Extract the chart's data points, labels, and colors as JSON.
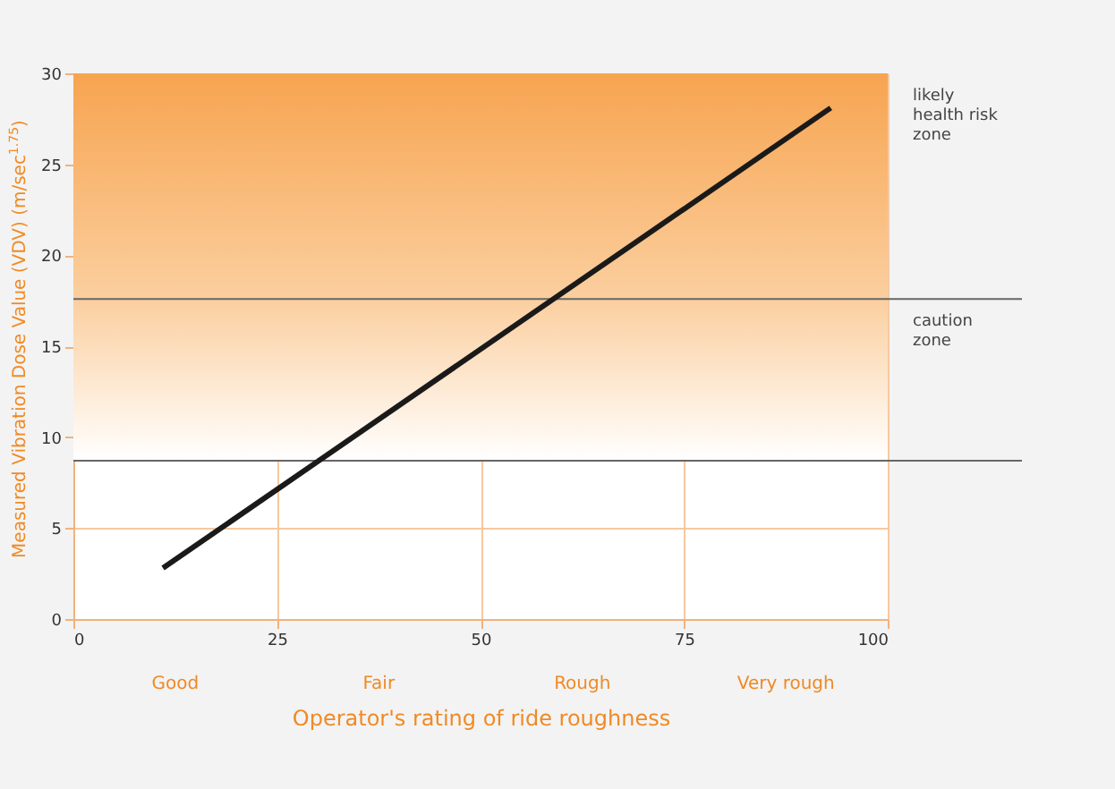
{
  "chart_data": {
    "type": "line",
    "xlabel": "Operator's rating of ride roughness",
    "ylabel": "Measured Vibration Dose Value (VDV) (m/sec$^{1.75}$)",
    "x": [
      11,
      93
    ],
    "series": [
      {
        "color": "#1a1a1a",
        "values": [
          2.8,
          28.1
        ]
      }
    ],
    "xlim": [
      0,
      100
    ],
    "xticks": [
      0,
      25,
      50,
      75,
      100
    ],
    "ylim": [
      0,
      30
    ],
    "yticks": [
      0,
      5,
      10,
      15,
      20,
      25,
      30
    ],
    "grid": true,
    "marker": "none",
    "line_style": "solid",
    "bands": [
      {
        "axis": "y",
        "from": 8.7,
        "to": 17.6,
        "label": "caution zone",
        "color": "#fbcf9f"
      },
      {
        "axis": "y",
        "from": 17.6,
        "to": 30,
        "label": "likely health risk zone",
        "color": "#f7a450"
      }
    ],
    "ref_lines": [
      {
        "axis": "y",
        "value": 8.7,
        "color": "#666666"
      },
      {
        "axis": "y",
        "value": 17.6,
        "color": "#666666"
      }
    ],
    "annotations": [
      "Good",
      "Fair",
      "Rough",
      "Very rough"
    ]
  }
}
